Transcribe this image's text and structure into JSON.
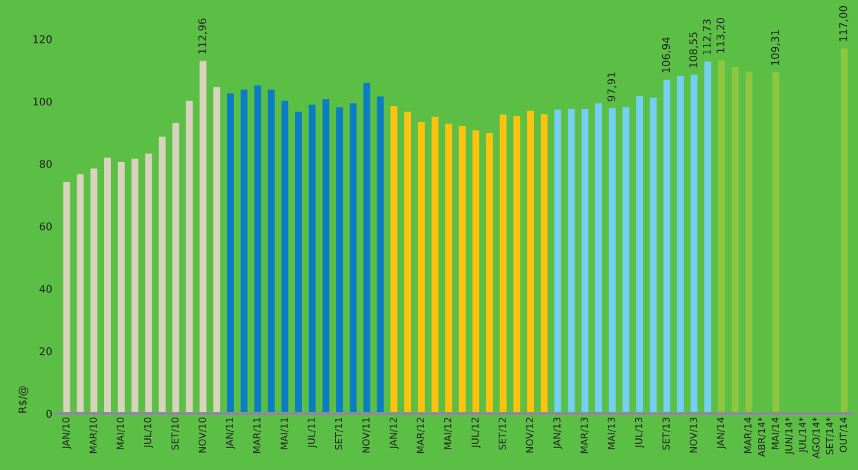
{
  "chart_data": {
    "type": "bar",
    "ylabel": "R$/@",
    "categories": [
      "JAN/10",
      null,
      "MAR/10",
      null,
      "MAI/10",
      null,
      "JUL/10",
      null,
      "SET/10",
      null,
      "NOV/10",
      null,
      "JAN/11",
      null,
      "MAR/11",
      null,
      "MAI/11",
      null,
      "JUL/11",
      null,
      "SET/11",
      null,
      "NOV/11",
      null,
      "JAN/12",
      null,
      "MAR/12",
      null,
      "MAI/12",
      null,
      "JUL/12",
      null,
      "SET/12",
      null,
      "NOV/12",
      null,
      "JAN/13",
      null,
      "MAR/13",
      null,
      "MAI/13",
      null,
      "JUL/13",
      null,
      "SET/13",
      null,
      "NOV/13",
      null,
      "JAN/14",
      null,
      "MAR/14",
      "ABR/14*",
      "MAI/14",
      "JUN/14*",
      "JUL/14*",
      "AGO/14*",
      "SET/14*",
      "OUT/14"
    ],
    "values": [
      74.2,
      76.7,
      78.5,
      82.0,
      80.6,
      81.6,
      83.3,
      88.7,
      93.1,
      100.2,
      112.96,
      104.6,
      102.6,
      103.8,
      105.1,
      103.8,
      100.2,
      96.7,
      99.0,
      100.7,
      98.1,
      99.4,
      106.0,
      101.6,
      98.5,
      96.7,
      93.4,
      95.0,
      92.8,
      92.1,
      90.7,
      89.9,
      95.8,
      95.4,
      97.0,
      95.9,
      97.4,
      97.6,
      97.6,
      99.4,
      97.91,
      98.2,
      101.8,
      101.2,
      106.94,
      108.2,
      108.55,
      112.73,
      113.2,
      111.0,
      109.5,
      null,
      109.31,
      null,
      null,
      null,
      null,
      117.0
    ],
    "value_labels": [
      null,
      null,
      null,
      null,
      null,
      null,
      null,
      null,
      null,
      null,
      "112,96",
      null,
      null,
      null,
      null,
      null,
      null,
      null,
      null,
      null,
      null,
      null,
      null,
      null,
      null,
      null,
      null,
      null,
      null,
      null,
      null,
      null,
      null,
      null,
      null,
      null,
      null,
      null,
      null,
      null,
      "97,91",
      null,
      null,
      null,
      "106,94",
      null,
      "108,55",
      "112,73",
      "113,20",
      null,
      null,
      null,
      "109,31",
      null,
      null,
      null,
      null,
      "117,00"
    ],
    "colors": [
      "#d8d3bc",
      "#d8d3bc",
      "#d8d3bc",
      "#d8d3bc",
      "#d8d3bc",
      "#d8d3bc",
      "#d8d3bc",
      "#d8d3bc",
      "#d8d3bc",
      "#d8d3bc",
      "#d8d3bc",
      "#d8d3bc",
      "#0a7dc4",
      "#0a7dc4",
      "#0a7dc4",
      "#0a7dc4",
      "#0a7dc4",
      "#0a7dc4",
      "#0a7dc4",
      "#0a7dc4",
      "#0a7dc4",
      "#0a7dc4",
      "#0a7dc4",
      "#0a7dc4",
      "#ffc20e",
      "#ffc20e",
      "#ffc20e",
      "#ffc20e",
      "#ffc20e",
      "#ffc20e",
      "#ffc20e",
      "#ffc20e",
      "#ffc20e",
      "#ffc20e",
      "#ffc20e",
      "#ffc20e",
      "#74cff2",
      "#74cff2",
      "#74cff2",
      "#74cff2",
      "#74cff2",
      "#74cff2",
      "#74cff2",
      "#74cff2",
      "#74cff2",
      "#74cff2",
      "#74cff2",
      "#74cff2",
      "#8dc63f",
      "#8dc63f",
      "#8dc63f",
      "#8dc63f",
      "#8dc63f",
      "#8dc63f",
      "#8dc63f",
      "#8dc63f",
      "#8dc63f",
      "#8dc63f"
    ],
    "ylim": [
      0,
      120
    ],
    "yticks": [
      0,
      20,
      40,
      60,
      80,
      100,
      120
    ],
    "grid": false
  }
}
